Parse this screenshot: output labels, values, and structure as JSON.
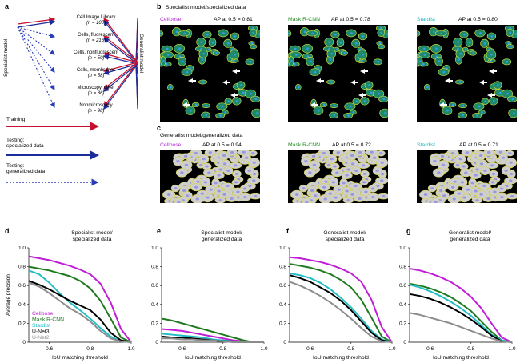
{
  "panel_a": {
    "label": "a",
    "specialist_label": "Specialist model",
    "generalist_label": "Generalist model",
    "datasets": [
      {
        "name": "Cell Image Library",
        "n": "(n = 100)"
      },
      {
        "name": "Cells, fluorescent",
        "n": "(n = 216)"
      },
      {
        "name": "Cells, nonfluorescent",
        "n": "(n = 50)"
      },
      {
        "name": "Cells, membranes",
        "n": "(n = 58)"
      },
      {
        "name": "Microscopy, other",
        "n": "(n = 86)"
      },
      {
        "name": "Nonmicroscopy",
        "n": "(n = 98)"
      }
    ],
    "legend": {
      "training": "Training",
      "testing_specialized": "Testing:\nspecialized data",
      "testing_generalized": "Testing:\ngeneralized data"
    },
    "colors": {
      "training": "#c8102e",
      "specialized": "#1a2c9a",
      "generalized": "#2a3db8"
    }
  },
  "panel_b": {
    "label": "b",
    "title": "Specialist model/specialized data",
    "models": [
      {
        "name": "Cellpose",
        "ap": "AP at 0.5 = 0.81",
        "color": "#b42ad6"
      },
      {
        "name": "Mask R-CNN",
        "ap": "AP at 0.5 = 0.78",
        "color": "#1f8a1f"
      },
      {
        "name": "Stardist",
        "ap": "AP at 0.5 = 0.80",
        "color": "#1fb5c4"
      }
    ]
  },
  "panel_c": {
    "label": "c",
    "title": "Generalist model/generalized data",
    "models": [
      {
        "name": "Cellpose",
        "ap": "AP at 0.5 = 0.94",
        "color": "#b42ad6"
      },
      {
        "name": "Mask R-CNN",
        "ap": "AP at 0.5 = 0.72",
        "color": "#1f8a1f"
      },
      {
        "name": "Stardist",
        "ap": "AP at 0.5 = 0.71",
        "color": "#1fb5c4"
      }
    ]
  },
  "legend_models": [
    {
      "name": "Cellpose",
      "color": "#c01ed6"
    },
    {
      "name": "Mask R-CNN",
      "color": "#1f7a1f"
    },
    {
      "name": "Stardist",
      "color": "#22bcc6"
    },
    {
      "name": "U-Net3",
      "color": "#000000"
    },
    {
      "name": "U-Net2",
      "color": "#8c8c8c"
    }
  ],
  "chart_data": [
    {
      "panel": "d",
      "type": "line",
      "title": "Specialist model/\nspecialized data",
      "xlabel": "IoU matching threshold",
      "ylabel": "Average precision",
      "xlim": [
        0.5,
        1.0
      ],
      "ylim": [
        0,
        1.0
      ],
      "xticks": [
        "0.6",
        "0.8",
        "1.0"
      ],
      "yticks": [
        "0",
        "0.2",
        "0.4",
        "0.6",
        "0.8",
        "1.0"
      ],
      "x": [
        0.5,
        0.55,
        0.6,
        0.65,
        0.7,
        0.75,
        0.8,
        0.85,
        0.9,
        0.95,
        1.0
      ],
      "series": [
        {
          "name": "Cellpose",
          "values": [
            0.91,
            0.89,
            0.87,
            0.84,
            0.81,
            0.77,
            0.72,
            0.62,
            0.42,
            0.14,
            0.0
          ]
        },
        {
          "name": "Mask R-CNN",
          "values": [
            0.8,
            0.78,
            0.76,
            0.73,
            0.7,
            0.65,
            0.57,
            0.44,
            0.25,
            0.05,
            0.0
          ]
        },
        {
          "name": "Stardist",
          "values": [
            0.76,
            0.72,
            0.63,
            0.52,
            0.42,
            0.34,
            0.25,
            0.15,
            0.06,
            0.01,
            0.0
          ]
        },
        {
          "name": "U-Net3",
          "values": [
            0.65,
            0.61,
            0.56,
            0.5,
            0.44,
            0.39,
            0.34,
            0.24,
            0.1,
            0.02,
            0.0
          ]
        },
        {
          "name": "U-Net2",
          "values": [
            0.63,
            0.59,
            0.52,
            0.44,
            0.36,
            0.3,
            0.22,
            0.12,
            0.04,
            0.01,
            0.0
          ]
        }
      ]
    },
    {
      "panel": "e",
      "type": "line",
      "title": "Specialist model/\ngeneralized data",
      "xlabel": "IoU matching threshold",
      "ylabel": "",
      "xlim": [
        0.5,
        1.0
      ],
      "ylim": [
        0,
        1.0
      ],
      "xticks": [
        "0.6",
        "0.8",
        "1.0"
      ],
      "yticks": [
        "0",
        "0.2",
        "0.4",
        "0.6",
        "0.8",
        "1.0"
      ],
      "x": [
        0.5,
        0.55,
        0.6,
        0.65,
        0.7,
        0.75,
        0.8,
        0.85,
        0.9,
        0.95,
        1.0
      ],
      "series": [
        {
          "name": "Cellpose",
          "values": [
            0.14,
            0.13,
            0.12,
            0.1,
            0.08,
            0.06,
            0.04,
            0.02,
            0.01,
            0.0,
            0.0
          ]
        },
        {
          "name": "Mask R-CNN",
          "values": [
            0.25,
            0.23,
            0.2,
            0.17,
            0.14,
            0.11,
            0.08,
            0.05,
            0.02,
            0.0,
            0.0
          ]
        },
        {
          "name": "Stardist",
          "values": [
            0.09,
            0.08,
            0.07,
            0.06,
            0.05,
            0.03,
            0.02,
            0.01,
            0.0,
            0.0,
            0.0
          ]
        },
        {
          "name": "U-Net3",
          "values": [
            0.06,
            0.05,
            0.05,
            0.04,
            0.03,
            0.02,
            0.01,
            0.01,
            0.0,
            0.0,
            0.0
          ]
        },
        {
          "name": "U-Net2",
          "values": [
            0.04,
            0.04,
            0.03,
            0.03,
            0.02,
            0.02,
            0.01,
            0.0,
            0.0,
            0.0,
            0.0
          ]
        }
      ]
    },
    {
      "panel": "f",
      "type": "line",
      "title": "Generalist model/\nspecialized data",
      "xlabel": "IoU matching threshold",
      "ylabel": "",
      "xlim": [
        0.5,
        1.0
      ],
      "ylim": [
        0,
        1.0
      ],
      "xticks": [
        "0.6",
        "0.8",
        "1.0"
      ],
      "yticks": [
        "0",
        "0.2",
        "0.4",
        "0.6",
        "0.8",
        "1.0"
      ],
      "x": [
        0.5,
        0.55,
        0.6,
        0.65,
        0.7,
        0.75,
        0.8,
        0.85,
        0.9,
        0.95,
        1.0
      ],
      "series": [
        {
          "name": "Cellpose",
          "values": [
            0.9,
            0.89,
            0.87,
            0.85,
            0.82,
            0.78,
            0.73,
            0.64,
            0.45,
            0.16,
            0.0
          ]
        },
        {
          "name": "Mask R-CNN",
          "values": [
            0.83,
            0.81,
            0.79,
            0.76,
            0.72,
            0.66,
            0.58,
            0.45,
            0.26,
            0.06,
            0.0
          ]
        },
        {
          "name": "Stardist",
          "values": [
            0.73,
            0.71,
            0.68,
            0.63,
            0.56,
            0.47,
            0.37,
            0.25,
            0.12,
            0.03,
            0.0
          ]
        },
        {
          "name": "U-Net3",
          "values": [
            0.71,
            0.68,
            0.64,
            0.58,
            0.52,
            0.44,
            0.34,
            0.22,
            0.1,
            0.02,
            0.0
          ]
        },
        {
          "name": "U-Net2",
          "values": [
            0.64,
            0.6,
            0.55,
            0.49,
            0.42,
            0.34,
            0.25,
            0.15,
            0.06,
            0.01,
            0.0
          ]
        }
      ]
    },
    {
      "panel": "g",
      "type": "line",
      "title": "Generalist model/\ngeneralized data",
      "xlabel": "IoU matching threshold",
      "ylabel": "",
      "xlim": [
        0.5,
        1.0
      ],
      "ylim": [
        0,
        1.0
      ],
      "xticks": [
        "0.6",
        "0.8",
        "1.0"
      ],
      "yticks": [
        "0",
        "0.2",
        "0.4",
        "0.6",
        "0.8",
        "1.0"
      ],
      "x": [
        0.5,
        0.55,
        0.6,
        0.65,
        0.7,
        0.75,
        0.8,
        0.85,
        0.9,
        0.95,
        1.0
      ],
      "series": [
        {
          "name": "Cellpose",
          "values": [
            0.78,
            0.76,
            0.73,
            0.69,
            0.64,
            0.57,
            0.48,
            0.36,
            0.2,
            0.05,
            0.0
          ]
        },
        {
          "name": "Mask R-CNN",
          "values": [
            0.62,
            0.6,
            0.57,
            0.53,
            0.48,
            0.41,
            0.33,
            0.22,
            0.11,
            0.02,
            0.0
          ]
        },
        {
          "name": "Stardist",
          "values": [
            0.61,
            0.58,
            0.54,
            0.49,
            0.43,
            0.36,
            0.28,
            0.18,
            0.08,
            0.02,
            0.0
          ]
        },
        {
          "name": "U-Net3",
          "values": [
            0.51,
            0.49,
            0.46,
            0.42,
            0.37,
            0.31,
            0.24,
            0.16,
            0.07,
            0.01,
            0.0
          ]
        },
        {
          "name": "U-Net2",
          "values": [
            0.31,
            0.29,
            0.26,
            0.23,
            0.2,
            0.16,
            0.12,
            0.08,
            0.04,
            0.01,
            0.0
          ]
        }
      ]
    }
  ]
}
